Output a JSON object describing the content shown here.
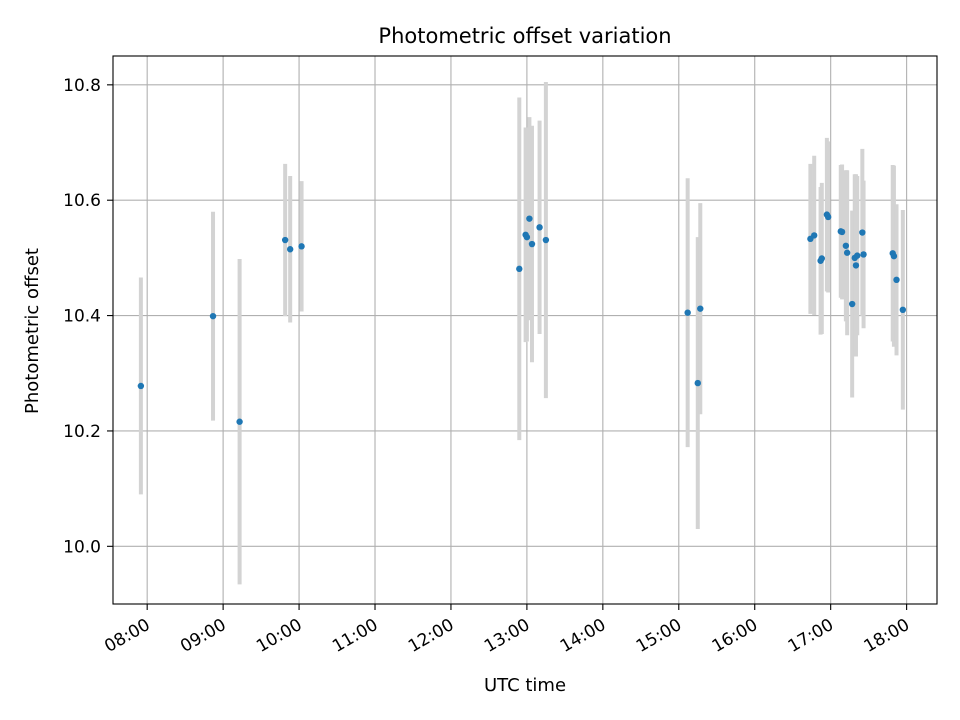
{
  "chart_data": {
    "type": "scatter",
    "title": "Photometric offset variation",
    "xlabel": "UTC time",
    "ylabel": "Photometric offset",
    "x_unit": "time of day (UTC), decimal hours",
    "xlim": [
      7.55,
      18.4
    ],
    "ylim": [
      9.9,
      10.85
    ],
    "x_ticks": [
      8,
      9,
      10,
      11,
      12,
      13,
      14,
      15,
      16,
      17,
      18
    ],
    "x_tick_labels": [
      "08:00",
      "09:00",
      "10:00",
      "11:00",
      "12:00",
      "13:00",
      "14:00",
      "15:00",
      "16:00",
      "17:00",
      "18:00"
    ],
    "y_ticks": [
      10.0,
      10.2,
      10.4,
      10.6,
      10.8
    ],
    "y_tick_labels": [
      "10.0",
      "10.2",
      "10.4",
      "10.6",
      "10.8"
    ],
    "grid": true,
    "legend": "none",
    "colors": {
      "marker": "#1f77b4",
      "errorbar": "#d3d3d3",
      "grid": "#b0b0b0"
    },
    "points": [
      {
        "x": 7.917,
        "y": 10.278,
        "err": 0.188
      },
      {
        "x": 8.867,
        "y": 10.399,
        "err": 0.181
      },
      {
        "x": 9.217,
        "y": 10.216,
        "err": 0.282
      },
      {
        "x": 9.817,
        "y": 10.531,
        "err": 0.132
      },
      {
        "x": 9.883,
        "y": 10.515,
        "err": 0.127
      },
      {
        "x": 10.033,
        "y": 10.52,
        "err": 0.113
      },
      {
        "x": 12.9,
        "y": 10.481,
        "err": 0.297
      },
      {
        "x": 12.983,
        "y": 10.54,
        "err": 0.186
      },
      {
        "x": 13.0,
        "y": 10.536,
        "err": 0.181
      },
      {
        "x": 13.033,
        "y": 10.568,
        "err": 0.176
      },
      {
        "x": 13.067,
        "y": 10.524,
        "err": 0.205
      },
      {
        "x": 13.167,
        "y": 10.553,
        "err": 0.185
      },
      {
        "x": 13.25,
        "y": 10.531,
        "err": 0.274
      },
      {
        "x": 15.117,
        "y": 10.405,
        "err": 0.233
      },
      {
        "x": 15.25,
        "y": 10.283,
        "err": 0.253
      },
      {
        "x": 15.283,
        "y": 10.412,
        "err": 0.183
      },
      {
        "x": 16.733,
        "y": 10.533,
        "err": 0.13
      },
      {
        "x": 16.783,
        "y": 10.539,
        "err": 0.138
      },
      {
        "x": 16.867,
        "y": 10.495,
        "err": 0.128
      },
      {
        "x": 16.883,
        "y": 10.499,
        "err": 0.131
      },
      {
        "x": 16.95,
        "y": 10.575,
        "err": 0.133
      },
      {
        "x": 16.967,
        "y": 10.571,
        "err": 0.131
      },
      {
        "x": 17.133,
        "y": 10.546,
        "err": 0.115
      },
      {
        "x": 17.15,
        "y": 10.545,
        "err": 0.117
      },
      {
        "x": 17.2,
        "y": 10.521,
        "err": 0.131
      },
      {
        "x": 17.217,
        "y": 10.509,
        "err": 0.143
      },
      {
        "x": 17.283,
        "y": 10.42,
        "err": 0.162
      },
      {
        "x": 17.317,
        "y": 10.5,
        "err": 0.145
      },
      {
        "x": 17.333,
        "y": 10.487,
        "err": 0.158
      },
      {
        "x": 17.35,
        "y": 10.504,
        "err": 0.138
      },
      {
        "x": 17.417,
        "y": 10.544,
        "err": 0.145
      },
      {
        "x": 17.433,
        "y": 10.506,
        "err": 0.128
      },
      {
        "x": 17.817,
        "y": 10.508,
        "err": 0.153
      },
      {
        "x": 17.833,
        "y": 10.503,
        "err": 0.157
      },
      {
        "x": 17.867,
        "y": 10.462,
        "err": 0.131
      },
      {
        "x": 17.95,
        "y": 10.41,
        "err": 0.173
      }
    ]
  }
}
